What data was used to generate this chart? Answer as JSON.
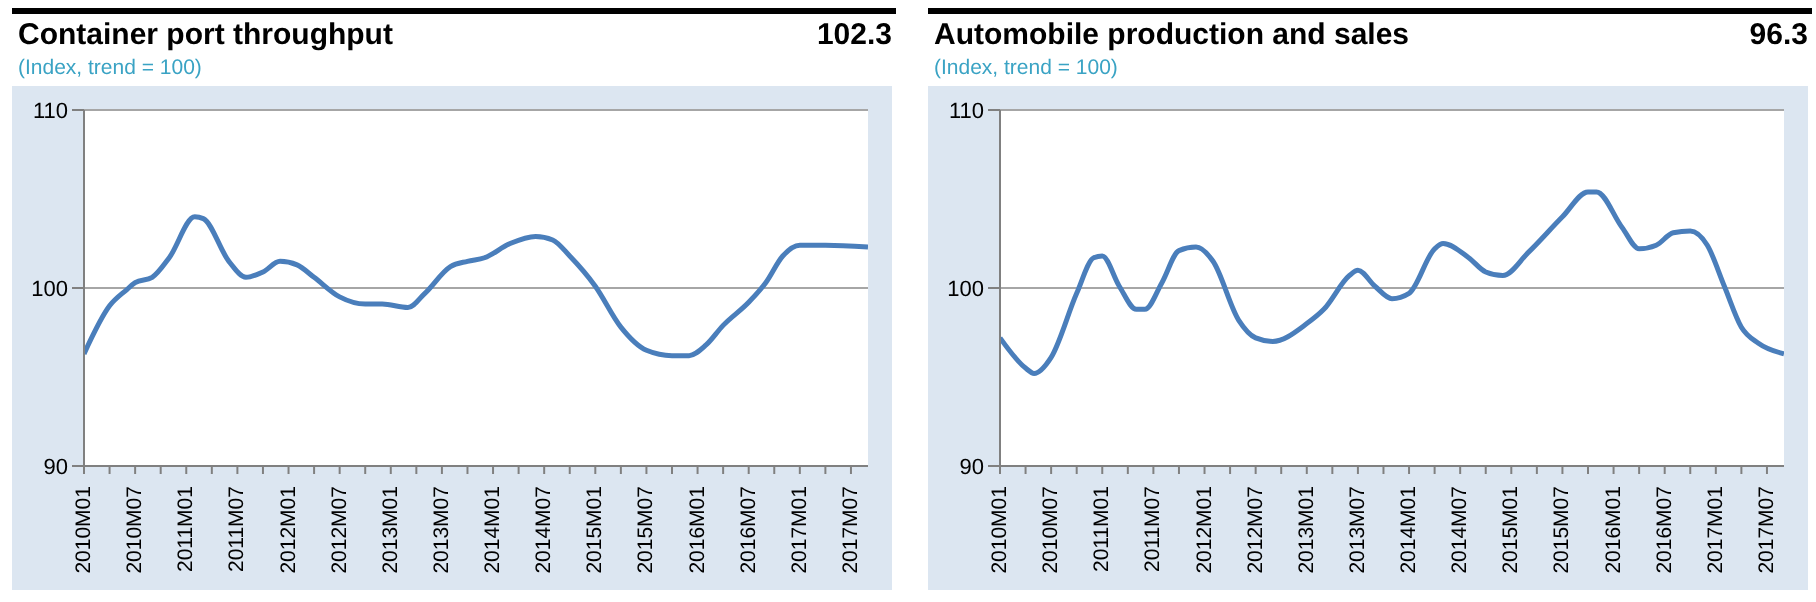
{
  "chart_data": [
    {
      "type": "line",
      "title": "Container port throughput",
      "subtitle": "(Index, trend = 100)",
      "annotations": [
        "102.3"
      ],
      "x": [
        "2010-01",
        "2010-04",
        "2010-06",
        "2010-07",
        "2010-09",
        "2010-11",
        "2011-02",
        "2011-03",
        "2011-06",
        "2011-08",
        "2011-10",
        "2011-12",
        "2012-02",
        "2012-04",
        "2012-07",
        "2012-10",
        "2012-12",
        "2013-03",
        "2013-05",
        "2013-08",
        "2013-10",
        "2013-12",
        "2014-03",
        "2014-06",
        "2014-08",
        "2014-10",
        "2015-01",
        "2015-04",
        "2015-07",
        "2015-10",
        "2015-12",
        "2016-02",
        "2016-04",
        "2016-07",
        "2016-09",
        "2016-11",
        "2017-01",
        "2017-04",
        "2017-09"
      ],
      "series": [
        {
          "color": "#4a7ebb",
          "values": [
            96.3,
            99.0,
            99.9,
            100.3,
            100.6,
            101.7,
            104.0,
            103.9,
            101.5,
            100.6,
            100.9,
            101.5,
            101.3,
            100.6,
            99.5,
            99.1,
            99.1,
            98.9,
            99.7,
            101.2,
            101.5,
            101.7,
            102.5,
            102.9,
            102.7,
            101.8,
            100.1,
            97.8,
            96.5,
            96.2,
            96.2,
            96.8,
            97.9,
            99.2,
            100.3,
            101.8,
            102.4,
            102.4,
            102.3
          ]
        }
      ],
      "xlim": [
        "2010-01",
        "2017-09"
      ],
      "xticks": [
        {
          "value": "2010-01",
          "label": "2010M01"
        },
        {
          "value": "2010-04",
          "label": null
        },
        {
          "value": "2010-07",
          "label": "2010M07"
        },
        {
          "value": "2010-10",
          "label": null
        },
        {
          "value": "2011-01",
          "label": "2011M01"
        },
        {
          "value": "2011-04",
          "label": null
        },
        {
          "value": "2011-07",
          "label": "2011M07"
        },
        {
          "value": "2011-10",
          "label": null
        },
        {
          "value": "2012-01",
          "label": "2012M01"
        },
        {
          "value": "2012-04",
          "label": null
        },
        {
          "value": "2012-07",
          "label": "2012M07"
        },
        {
          "value": "2012-10",
          "label": null
        },
        {
          "value": "2013-01",
          "label": "2013M01"
        },
        {
          "value": "2013-04",
          "label": null
        },
        {
          "value": "2013-07",
          "label": "2013M07"
        },
        {
          "value": "2013-10",
          "label": null
        },
        {
          "value": "2014-01",
          "label": "2014M01"
        },
        {
          "value": "2014-04",
          "label": null
        },
        {
          "value": "2014-07",
          "label": "2014M07"
        },
        {
          "value": "2014-10",
          "label": null
        },
        {
          "value": "2015-01",
          "label": "2015M01"
        },
        {
          "value": "2015-04",
          "label": null
        },
        {
          "value": "2015-07",
          "label": "2015M07"
        },
        {
          "value": "2015-10",
          "label": null
        },
        {
          "value": "2016-01",
          "label": "2016M01"
        },
        {
          "value": "2016-04",
          "label": null
        },
        {
          "value": "2016-07",
          "label": "2016M07"
        },
        {
          "value": "2016-10",
          "label": null
        },
        {
          "value": "2017-01",
          "label": "2017M01"
        },
        {
          "value": "2017-04",
          "label": null
        },
        {
          "value": "2017-07",
          "label": "2017M07"
        }
      ],
      "ylim": [
        90,
        110
      ],
      "yticks": [
        90,
        100,
        110
      ],
      "grid": "y"
    },
    {
      "type": "line",
      "title": "Automobile production and sales",
      "subtitle": "(Index, trend = 100)",
      "annotations": [
        "96.3"
      ],
      "x": [
        "2010-01",
        "2010-04",
        "2010-05",
        "2010-07",
        "2010-10",
        "2010-12",
        "2011-01",
        "2011-03",
        "2011-05",
        "2011-06",
        "2011-08",
        "2011-10",
        "2011-12",
        "2012-02",
        "2012-05",
        "2012-07",
        "2012-09",
        "2013-01",
        "2013-03",
        "2013-06",
        "2013-07",
        "2013-09",
        "2013-11",
        "2014-01",
        "2014-04",
        "2014-05",
        "2014-08",
        "2014-10",
        "2014-12",
        "2015-03",
        "2015-07",
        "2015-10",
        "2015-11",
        "2016-02",
        "2016-04",
        "2016-06",
        "2016-08",
        "2016-10",
        "2016-12",
        "2017-02",
        "2017-04",
        "2017-06",
        "2017-09"
      ],
      "series": [
        {
          "color": "#4a7ebb",
          "values": [
            97.2,
            95.5,
            95.2,
            96.1,
            99.7,
            101.7,
            101.8,
            100.1,
            98.8,
            98.8,
            100.3,
            102.1,
            102.3,
            101.5,
            98.2,
            97.2,
            97.0,
            98.0,
            98.8,
            100.7,
            101.0,
            100.1,
            99.4,
            99.7,
            102.2,
            102.5,
            101.7,
            100.9,
            100.7,
            102.0,
            104.0,
            105.4,
            105.4,
            103.4,
            102.2,
            102.4,
            103.1,
            103.2,
            102.4,
            100.1,
            97.8,
            96.9,
            96.3
          ]
        }
      ],
      "xlim": [
        "2010-01",
        "2017-09"
      ],
      "xticks": [
        {
          "value": "2010-01",
          "label": "2010M01"
        },
        {
          "value": "2010-04",
          "label": null
        },
        {
          "value": "2010-07",
          "label": "2010M07"
        },
        {
          "value": "2010-10",
          "label": null
        },
        {
          "value": "2011-01",
          "label": "2011M01"
        },
        {
          "value": "2011-04",
          "label": null
        },
        {
          "value": "2011-07",
          "label": "2011M07"
        },
        {
          "value": "2011-10",
          "label": null
        },
        {
          "value": "2012-01",
          "label": "2012M01"
        },
        {
          "value": "2012-04",
          "label": null
        },
        {
          "value": "2012-07",
          "label": "2012M07"
        },
        {
          "value": "2012-10",
          "label": null
        },
        {
          "value": "2013-01",
          "label": "2013M01"
        },
        {
          "value": "2013-04",
          "label": null
        },
        {
          "value": "2013-07",
          "label": "2013M07"
        },
        {
          "value": "2013-10",
          "label": null
        },
        {
          "value": "2014-01",
          "label": "2014M01"
        },
        {
          "value": "2014-04",
          "label": null
        },
        {
          "value": "2014-07",
          "label": "2014M07"
        },
        {
          "value": "2014-10",
          "label": null
        },
        {
          "value": "2015-01",
          "label": "2015M01"
        },
        {
          "value": "2015-04",
          "label": null
        },
        {
          "value": "2015-07",
          "label": "2015M07"
        },
        {
          "value": "2015-10",
          "label": null
        },
        {
          "value": "2016-01",
          "label": "2016M01"
        },
        {
          "value": "2016-04",
          "label": null
        },
        {
          "value": "2016-07",
          "label": "2016M07"
        },
        {
          "value": "2016-10",
          "label": null
        },
        {
          "value": "2017-01",
          "label": "2017M01"
        },
        {
          "value": "2017-04",
          "label": null
        },
        {
          "value": "2017-07",
          "label": "2017M07"
        }
      ],
      "ylim": [
        90,
        110
      ],
      "yticks": [
        90,
        100,
        110
      ],
      "grid": "y"
    }
  ]
}
